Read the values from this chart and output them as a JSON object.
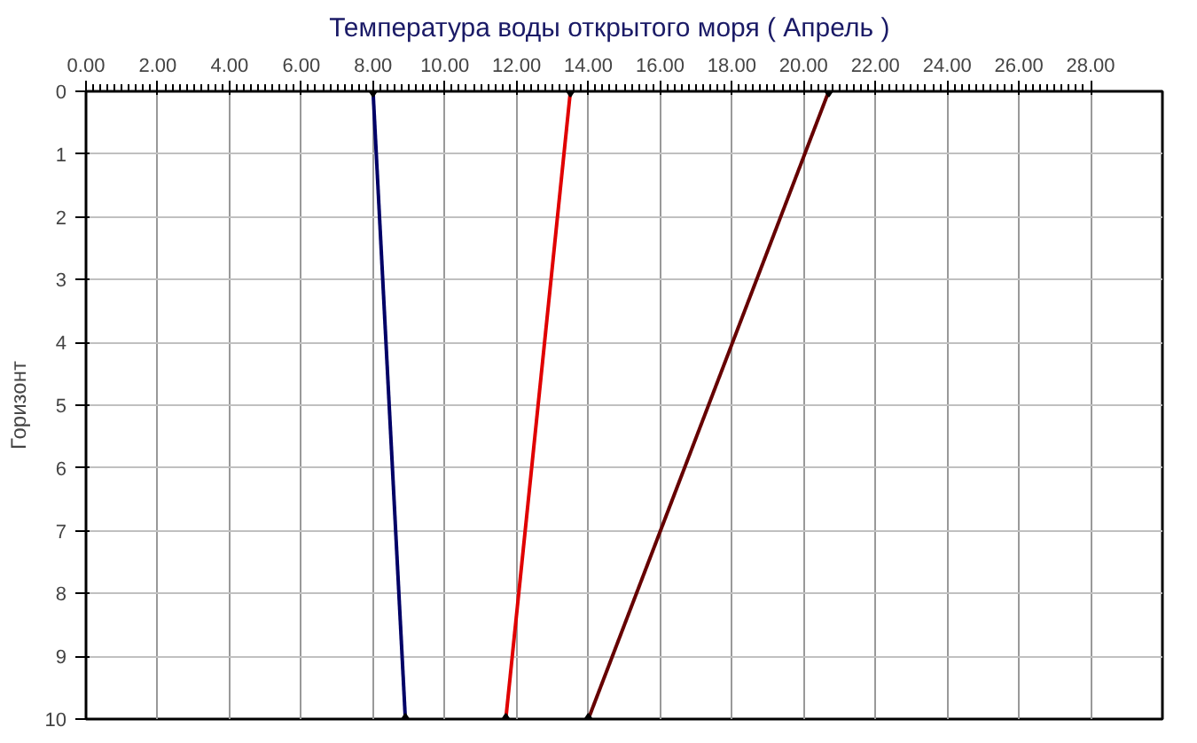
{
  "chart_data": {
    "type": "line",
    "title": "Температура воды открытого моря     ( Апрель )",
    "ylabel": "Горизонт",
    "series": [
      {
        "color": "#000066",
        "x": [
          8.0,
          8.9
        ],
        "values": [
          0,
          10
        ]
      },
      {
        "color": "#e00000",
        "x": [
          13.5,
          11.7
        ],
        "values": [
          0,
          10
        ]
      },
      {
        "color": "#660000",
        "x": [
          20.7,
          14.0
        ],
        "values": [
          0,
          10
        ]
      }
    ],
    "xlim": [
      0,
      30
    ],
    "xticks": [
      {
        "value": 0,
        "label": "0.00"
      },
      {
        "value": 2,
        "label": "2.00"
      },
      {
        "value": 4,
        "label": "4.00"
      },
      {
        "value": 6,
        "label": "6.00"
      },
      {
        "value": 8,
        "label": "8.00"
      },
      {
        "value": 10,
        "label": "10.00"
      },
      {
        "value": 12,
        "label": "12.00"
      },
      {
        "value": 14,
        "label": "14.00"
      },
      {
        "value": 16,
        "label": "16.00"
      },
      {
        "value": 18,
        "label": "18.00"
      },
      {
        "value": 20,
        "label": "20.00"
      },
      {
        "value": 22,
        "label": "22.00"
      },
      {
        "value": 24,
        "label": "24.00"
      },
      {
        "value": 26,
        "label": "26.00"
      },
      {
        "value": 28,
        "label": "28.00"
      }
    ],
    "ylim": [
      10,
      0
    ],
    "yticks": [
      0,
      1,
      2,
      3,
      4,
      5,
      6,
      7,
      8,
      9,
      10
    ],
    "grid": true,
    "marker": "diamond",
    "line_style": "solid"
  }
}
